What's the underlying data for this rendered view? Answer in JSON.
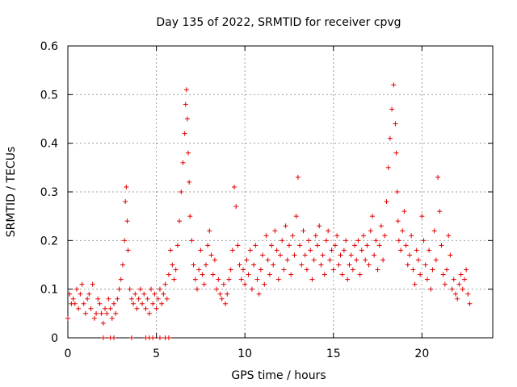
{
  "chart_data": {
    "type": "scatter",
    "title": "Day 135 of 2022, SRMTID for receiver cpvg",
    "xlabel": "GPS time / hours",
    "ylabel": "SRMTID / TECUs",
    "xlim": [
      0,
      24
    ],
    "ylim": [
      0,
      0.6
    ],
    "x_ticks": [
      0,
      5,
      10,
      15,
      20
    ],
    "y_ticks": [
      0,
      0.1,
      0.2,
      0.3,
      0.4,
      0.5,
      0.6
    ],
    "x_tick_labels": [
      "0",
      "5",
      "10",
      "15",
      "20"
    ],
    "y_tick_labels": [
      "0",
      "0.1",
      "0.2",
      "0.3",
      "0.4",
      "0.5",
      "0.6"
    ],
    "grid": true,
    "marker": "+",
    "color": "#e00000",
    "series": [
      {
        "name": "SRMTID",
        "x": [
          0.0,
          0.1,
          0.2,
          0.3,
          0.4,
          0.5,
          0.6,
          0.7,
          0.8,
          0.9,
          1.0,
          1.1,
          1.2,
          1.3,
          1.4,
          1.5,
          1.6,
          1.7,
          1.8,
          1.9,
          2.0,
          2.1,
          2.2,
          2.3,
          2.4,
          2.5,
          2.6,
          2.7,
          2.8,
          2.9,
          3.0,
          3.1,
          3.2,
          3.25,
          3.3,
          3.35,
          3.4,
          3.5,
          3.6,
          3.7,
          3.8,
          3.9,
          4.0,
          4.1,
          4.2,
          4.3,
          4.4,
          4.5,
          4.6,
          4.7,
          4.8,
          4.9,
          5.0,
          5.1,
          5.2,
          5.3,
          5.4,
          5.5,
          5.6,
          5.7,
          5.8,
          5.9,
          6.0,
          6.1,
          6.2,
          6.3,
          6.4,
          6.5,
          6.6,
          6.65,
          6.7,
          6.75,
          6.8,
          6.85,
          6.9,
          7.0,
          7.1,
          7.2,
          7.3,
          7.4,
          7.5,
          7.6,
          7.7,
          7.8,
          7.9,
          8.0,
          8.1,
          8.2,
          8.3,
          8.4,
          8.5,
          8.6,
          8.7,
          8.8,
          8.9,
          9.0,
          9.1,
          9.2,
          9.3,
          9.4,
          9.5,
          9.6,
          9.7,
          9.8,
          9.9,
          10.0,
          10.1,
          10.2,
          10.3,
          10.4,
          10.5,
          10.6,
          10.7,
          10.8,
          10.9,
          11.0,
          11.1,
          11.2,
          11.3,
          11.4,
          11.5,
          11.6,
          11.7,
          11.8,
          11.9,
          12.0,
          12.1,
          12.2,
          12.3,
          12.4,
          12.5,
          12.6,
          12.7,
          12.8,
          12.9,
          13.0,
          13.1,
          13.2,
          13.3,
          13.4,
          13.5,
          13.6,
          13.7,
          13.8,
          13.9,
          14.0,
          14.1,
          14.2,
          14.3,
          14.4,
          14.5,
          14.6,
          14.7,
          14.8,
          14.9,
          15.0,
          15.1,
          15.2,
          15.3,
          15.4,
          15.5,
          15.6,
          15.7,
          15.8,
          15.9,
          16.0,
          16.1,
          16.2,
          16.3,
          16.4,
          16.5,
          16.6,
          16.7,
          16.8,
          16.9,
          17.0,
          17.1,
          17.2,
          17.3,
          17.4,
          17.5,
          17.6,
          17.7,
          17.8,
          17.9,
          18.0,
          18.1,
          18.2,
          18.3,
          18.4,
          18.5,
          18.55,
          18.6,
          18.65,
          18.7,
          18.8,
          18.9,
          19.0,
          19.1,
          19.2,
          19.3,
          19.4,
          19.5,
          19.6,
          19.7,
          19.8,
          19.9,
          20.0,
          20.1,
          20.2,
          20.3,
          20.4,
          20.5,
          20.6,
          20.7,
          20.8,
          20.9,
          21.0,
          21.1,
          21.2,
          21.3,
          21.4,
          21.5,
          21.6,
          21.7,
          21.8,
          21.9,
          22.0,
          22.1,
          22.2,
          22.3,
          22.4,
          22.5,
          22.6,
          22.7,
          2.0,
          2.4,
          2.6,
          3.6,
          4.4,
          4.6,
          4.8,
          5.2,
          5.5,
          5.7
        ],
        "y": [
          0.04,
          0.09,
          0.07,
          0.08,
          0.07,
          0.1,
          0.06,
          0.09,
          0.11,
          0.07,
          0.05,
          0.08,
          0.09,
          0.06,
          0.11,
          0.04,
          0.05,
          0.08,
          0.07,
          0.05,
          0.03,
          0.06,
          0.05,
          0.08,
          0.06,
          0.04,
          0.07,
          0.05,
          0.08,
          0.1,
          0.12,
          0.15,
          0.2,
          0.28,
          0.31,
          0.24,
          0.18,
          0.1,
          0.08,
          0.07,
          0.09,
          0.06,
          0.08,
          0.1,
          0.07,
          0.09,
          0.06,
          0.08,
          0.05,
          0.1,
          0.07,
          0.09,
          0.06,
          0.08,
          0.1,
          0.07,
          0.09,
          0.11,
          0.08,
          0.13,
          0.18,
          0.15,
          0.12,
          0.14,
          0.19,
          0.24,
          0.3,
          0.36,
          0.42,
          0.48,
          0.51,
          0.45,
          0.38,
          0.32,
          0.25,
          0.2,
          0.15,
          0.12,
          0.1,
          0.14,
          0.18,
          0.13,
          0.11,
          0.15,
          0.19,
          0.22,
          0.17,
          0.13,
          0.16,
          0.1,
          0.12,
          0.09,
          0.08,
          0.11,
          0.07,
          0.09,
          0.12,
          0.14,
          0.18,
          0.31,
          0.27,
          0.19,
          0.15,
          0.12,
          0.14,
          0.11,
          0.16,
          0.13,
          0.18,
          0.1,
          0.15,
          0.19,
          0.12,
          0.09,
          0.14,
          0.17,
          0.11,
          0.21,
          0.16,
          0.13,
          0.19,
          0.15,
          0.22,
          0.18,
          0.12,
          0.17,
          0.2,
          0.14,
          0.23,
          0.16,
          0.19,
          0.13,
          0.21,
          0.17,
          0.25,
          0.33,
          0.19,
          0.15,
          0.22,
          0.17,
          0.14,
          0.2,
          0.18,
          0.12,
          0.16,
          0.21,
          0.19,
          0.23,
          0.15,
          0.17,
          0.13,
          0.2,
          0.22,
          0.16,
          0.18,
          0.14,
          0.19,
          0.21,
          0.15,
          0.17,
          0.13,
          0.18,
          0.2,
          0.12,
          0.15,
          0.17,
          0.14,
          0.19,
          0.16,
          0.2,
          0.13,
          0.18,
          0.21,
          0.16,
          0.19,
          0.15,
          0.22,
          0.25,
          0.17,
          0.2,
          0.14,
          0.19,
          0.23,
          0.16,
          0.21,
          0.28,
          0.35,
          0.41,
          0.47,
          0.52,
          0.44,
          0.38,
          0.3,
          0.24,
          0.2,
          0.18,
          0.22,
          0.26,
          0.19,
          0.15,
          0.17,
          0.21,
          0.14,
          0.11,
          0.18,
          0.16,
          0.13,
          0.25,
          0.2,
          0.15,
          0.12,
          0.18,
          0.1,
          0.14,
          0.22,
          0.16,
          0.33,
          0.26,
          0.19,
          0.13,
          0.11,
          0.14,
          0.21,
          0.17,
          0.1,
          0.12,
          0.09,
          0.08,
          0.11,
          0.13,
          0.1,
          0.12,
          0.14,
          0.09,
          0.07,
          0.0,
          0.0,
          0.0,
          0.0,
          0.0,
          0.0,
          0.0,
          0.0,
          0.0,
          0.0
        ]
      }
    ]
  }
}
